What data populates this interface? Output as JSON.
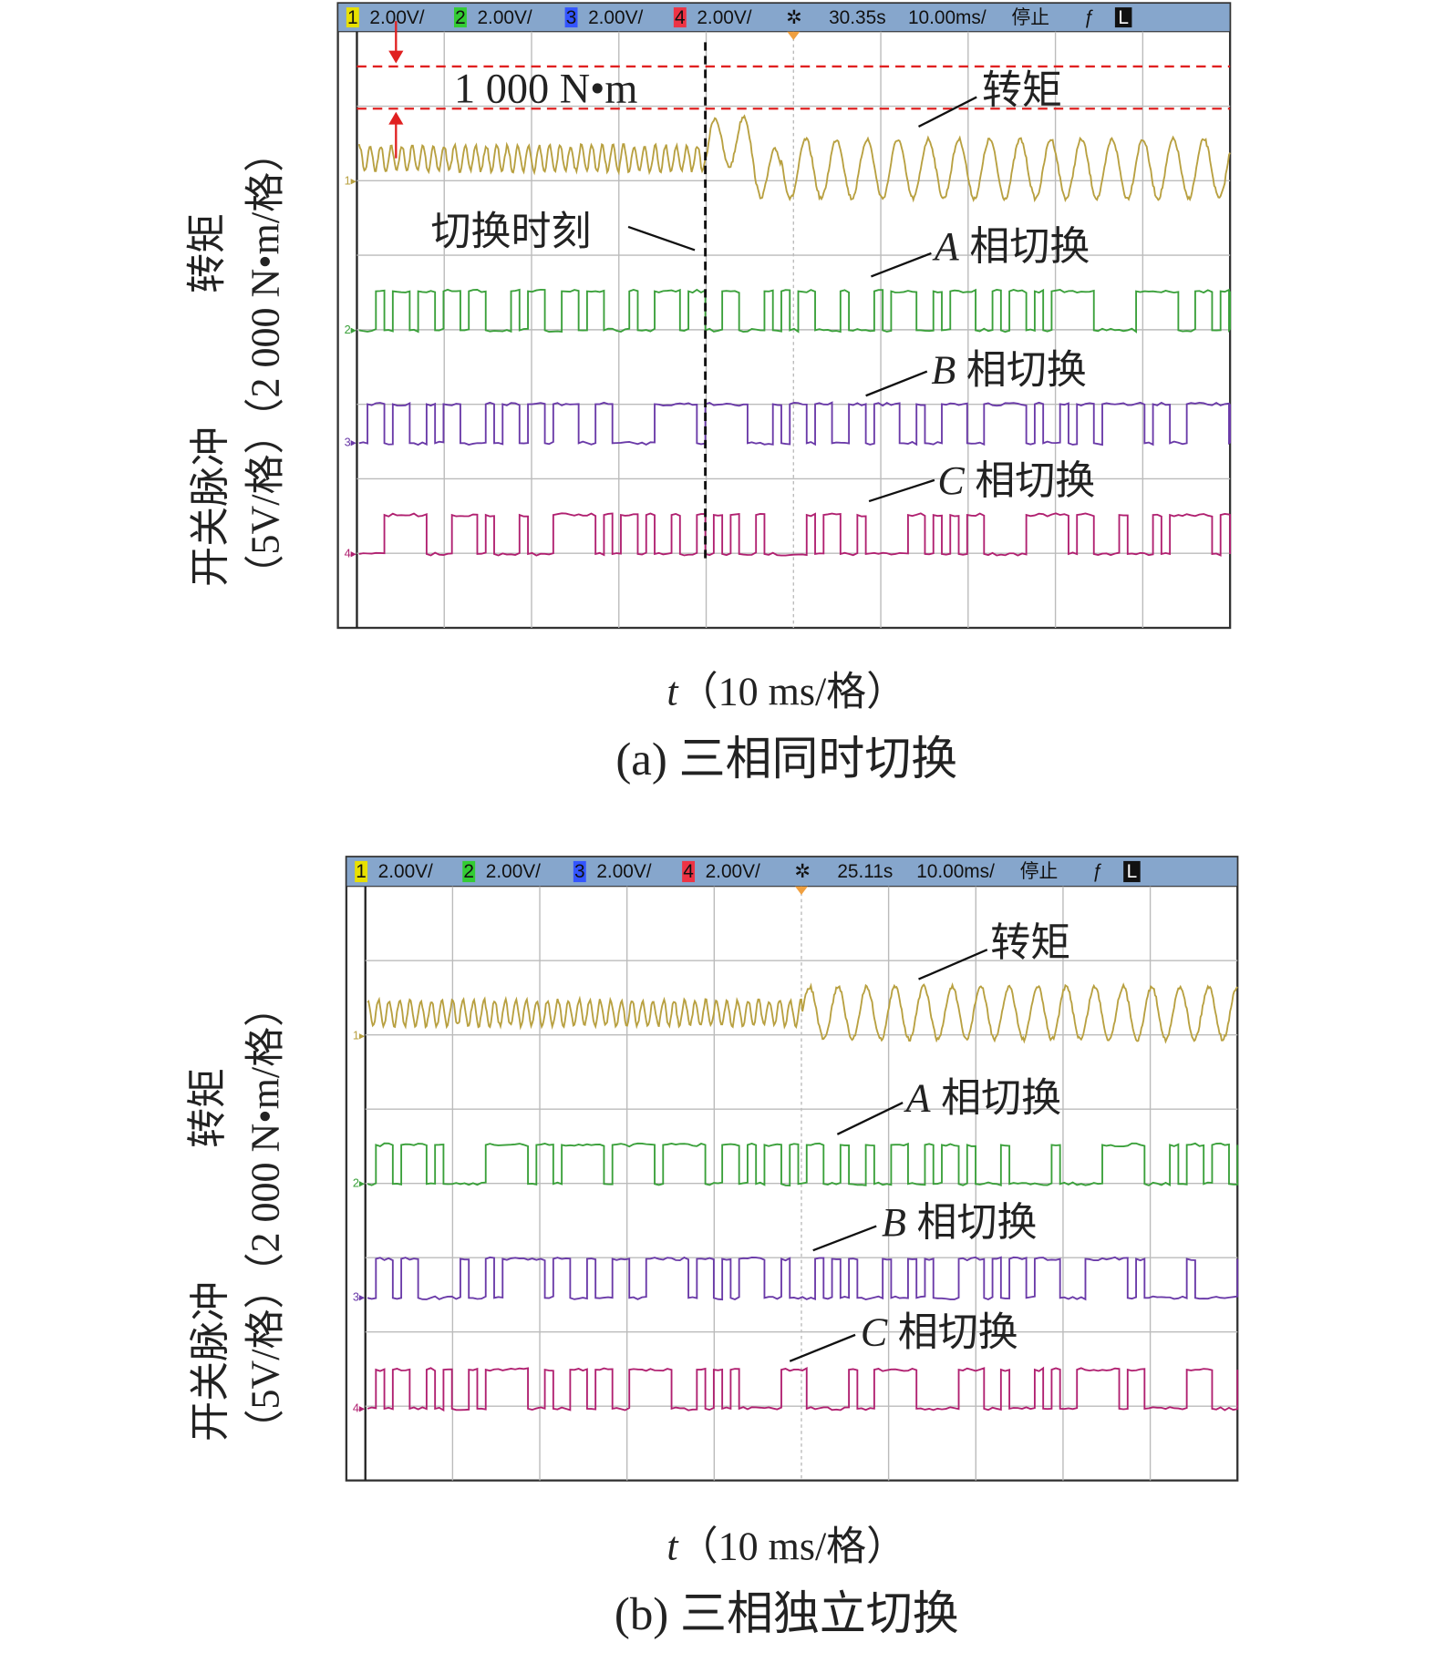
{
  "panels": [
    {
      "status_bar": {
        "channels": [
          {
            "num": "1",
            "scale": "2.00V/"
          },
          {
            "num": "2",
            "scale": "2.00V/"
          },
          {
            "num": "3",
            "scale": "2.00V/"
          },
          {
            "num": "4",
            "scale": "2.00V/"
          }
        ],
        "time": "30.35s",
        "timebase": "10.00ms/",
        "state": "停止",
        "mode": "L"
      },
      "annotations": {
        "torque_step": "1 000 N•m",
        "torque": "转矩",
        "switch_moment": "切换时刻",
        "phase_a": {
          "phase": "A",
          "text": "相切换"
        },
        "phase_b": {
          "phase": "B",
          "text": "相切换"
        },
        "phase_c": {
          "phase": "C",
          "text": "相切换"
        }
      },
      "y_label_torque": "转矩",
      "y_label_torque_unit": "（2 000 N•m/格）",
      "y_label_pulse": "开关脉冲",
      "y_label_pulse_unit": "（5V/格）",
      "x_label": {
        "var": "t",
        "unit": "（10 ms/格）"
      },
      "caption": "(a) 三相同时切换"
    },
    {
      "status_bar": {
        "channels": [
          {
            "num": "1",
            "scale": "2.00V/"
          },
          {
            "num": "2",
            "scale": "2.00V/"
          },
          {
            "num": "3",
            "scale": "2.00V/"
          },
          {
            "num": "4",
            "scale": "2.00V/"
          }
        ],
        "time": "25.11s",
        "timebase": "10.00ms/",
        "state": "停止",
        "mode": "L"
      },
      "annotations": {
        "torque": "转矩",
        "phase_a": {
          "phase": "A",
          "text": "相切换"
        },
        "phase_b": {
          "phase": "B",
          "text": "相切换"
        },
        "phase_c": {
          "phase": "C",
          "text": "相切换"
        }
      },
      "y_label_torque": "转矩",
      "y_label_torque_unit": "（2 000 N•m/格）",
      "y_label_pulse": "开关脉冲",
      "y_label_pulse_unit": "（5V/格）",
      "x_label": {
        "var": "t",
        "unit": "（10 ms/格）"
      },
      "caption": "(b) 三相独立切换"
    }
  ]
}
